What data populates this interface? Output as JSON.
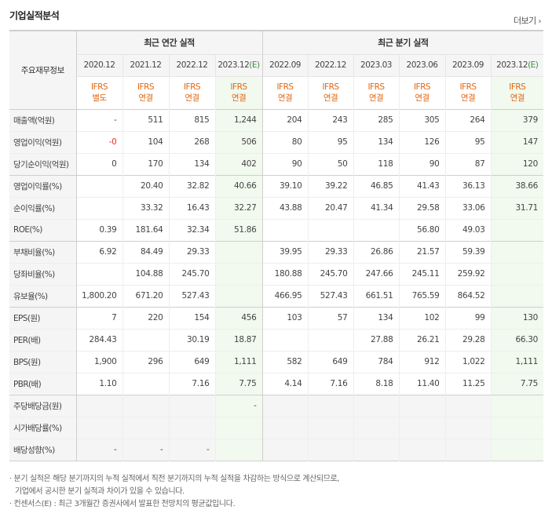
{
  "title": "기업실적분석",
  "more_label": "더보기",
  "header": {
    "row_label": "주요재무정보",
    "annual_group": "최근 연간 실적",
    "quarter_group": "최근 분기 실적",
    "periods": [
      "2020.12",
      "2021.12",
      "2022.12",
      "2023.12(E)",
      "2022.09",
      "2022.12",
      "2023.03",
      "2023.06",
      "2023.09",
      "2023.12(E)"
    ],
    "ifrs_top": [
      "IFRS",
      "IFRS",
      "IFRS",
      "IFRS",
      "IFRS",
      "IFRS",
      "IFRS",
      "IFRS",
      "IFRS",
      "IFRS"
    ],
    "ifrs_bottom": [
      "별도",
      "연결",
      "연결",
      "연결",
      "연결",
      "연결",
      "연결",
      "연결",
      "연결",
      "연결"
    ]
  },
  "rows": [
    {
      "label": "매출액(억원)",
      "values": [
        "-",
        "511",
        "815",
        "1,244",
        "204",
        "243",
        "285",
        "305",
        "264",
        "379"
      ]
    },
    {
      "label": "영업이익(억원)",
      "values": [
        "-0",
        "104",
        "268",
        "506",
        "80",
        "95",
        "134",
        "126",
        "95",
        "147"
      ]
    },
    {
      "label": "당기순이익(억원)",
      "values": [
        "0",
        "170",
        "134",
        "402",
        "90",
        "50",
        "118",
        "90",
        "87",
        "120"
      ]
    },
    {
      "label": "영업이익률(%)",
      "values": [
        "",
        "20.40",
        "32.82",
        "40.66",
        "39.10",
        "39.22",
        "46.85",
        "41.43",
        "36.13",
        "38.66"
      ]
    },
    {
      "label": "순이익률(%)",
      "values": [
        "",
        "33.32",
        "16.43",
        "32.27",
        "43.88",
        "20.47",
        "41.34",
        "29.58",
        "33.06",
        "31.71"
      ]
    },
    {
      "label": "ROE(%)",
      "values": [
        "0.39",
        "181.64",
        "32.34",
        "51.86",
        "",
        "",
        "",
        "56.80",
        "49.03",
        ""
      ]
    },
    {
      "label": "부채비율(%)",
      "values": [
        "6.92",
        "84.49",
        "29.33",
        "",
        "39.95",
        "29.33",
        "26.86",
        "21.57",
        "59.39",
        ""
      ]
    },
    {
      "label": "당좌비율(%)",
      "values": [
        "",
        "104.88",
        "245.70",
        "",
        "180.88",
        "245.70",
        "247.66",
        "245.11",
        "259.92",
        ""
      ]
    },
    {
      "label": "유보율(%)",
      "values": [
        "1,800.20",
        "671.20",
        "527.43",
        "",
        "466.95",
        "527.43",
        "661.51",
        "765.59",
        "864.52",
        ""
      ]
    },
    {
      "label": "EPS(원)",
      "values": [
        "7",
        "220",
        "154",
        "456",
        "103",
        "57",
        "134",
        "102",
        "99",
        "130"
      ]
    },
    {
      "label": "PER(배)",
      "values": [
        "284.43",
        "",
        "30.19",
        "18.87",
        "",
        "",
        "27.88",
        "26.21",
        "29.28",
        "66.30"
      ]
    },
    {
      "label": "BPS(원)",
      "values": [
        "1,900",
        "296",
        "649",
        "1,111",
        "582",
        "649",
        "784",
        "912",
        "1,022",
        "1,111"
      ]
    },
    {
      "label": "PBR(배)",
      "values": [
        "1.10",
        "",
        "7.16",
        "7.75",
        "4.14",
        "7.16",
        "8.18",
        "11.40",
        "11.25",
        "7.75"
      ]
    },
    {
      "label": "주당배당금(원)",
      "values": [
        "",
        "",
        "",
        "-",
        "",
        "",
        "",
        "",
        "",
        ""
      ]
    },
    {
      "label": "시가배당률(%)",
      "values": [
        "",
        "",
        "",
        "",
        "",
        "",
        "",
        "",
        "",
        ""
      ]
    },
    {
      "label": "배당성향(%)",
      "values": [
        "-",
        "-",
        "-",
        "",
        "",
        "",
        "",
        "",
        "",
        ""
      ]
    }
  ],
  "notes": [
    "· 분기 실적은 해당 분기까지의 누적 실적에서 직전 분기까지의 누적 실적을 차감하는 방식으로 계산되므로,",
    "  기업에서 공시한 분기 실적과 차이가 있을 수 있습니다.",
    "· 컨센서스(E) : 최근 3개월간 증권사에서 발표한 전망치의 평균값입니다."
  ],
  "colors": {
    "ifrs": "#e16712",
    "negative": "#e0332d",
    "estimate_bg": "#f2f9ee",
    "header_bg": "#f5f5f5",
    "estimate_label": "#3d8f3d"
  }
}
